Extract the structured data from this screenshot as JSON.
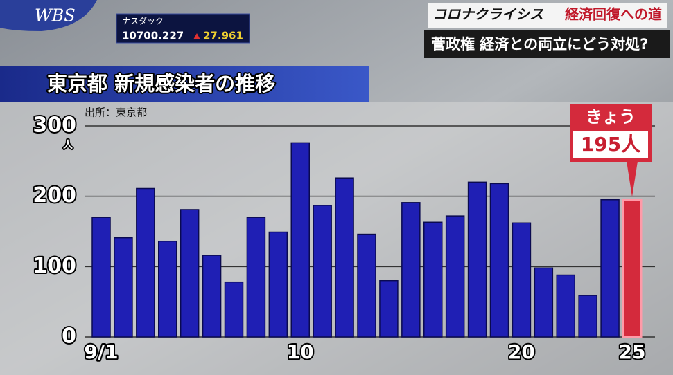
{
  "screen": {
    "logo": "WBS",
    "ticker": {
      "name": "ナスダック",
      "value": "10700.227",
      "change": "27.961"
    },
    "headline": {
      "series": "コロナクライシス",
      "topic": "経済回復への道",
      "title": "菅政権 経済との両立にどう対処?"
    }
  },
  "chart_data": {
    "type": "bar",
    "title": "東京都 新規感染者の推移",
    "source": "出所：東京都",
    "y_unit": "人",
    "callout_label": "きょう",
    "categories": [
      "9/1",
      null,
      null,
      null,
      null,
      null,
      null,
      null,
      null,
      "10",
      null,
      null,
      null,
      null,
      null,
      null,
      null,
      null,
      null,
      "20",
      null,
      null,
      null,
      null,
      "25"
    ],
    "values": [
      170,
      141,
      211,
      136,
      181,
      116,
      78,
      170,
      149,
      276,
      187,
      226,
      146,
      80,
      191,
      163,
      172,
      220,
      218,
      162,
      98,
      88,
      59,
      195,
      195
    ],
    "value_labels": [
      null,
      null,
      null,
      null,
      null,
      null,
      null,
      null,
      null,
      null,
      null,
      null,
      null,
      null,
      null,
      null,
      null,
      null,
      null,
      null,
      null,
      null,
      null,
      null,
      "195人"
    ],
    "colors": [
      "#1f1fb4",
      "#1f1fb4",
      "#1f1fb4",
      "#1f1fb4",
      "#1f1fb4",
      "#1f1fb4",
      "#1f1fb4",
      "#1f1fb4",
      "#1f1fb4",
      "#1f1fb4",
      "#1f1fb4",
      "#1f1fb4",
      "#1f1fb4",
      "#1f1fb4",
      "#1f1fb4",
      "#1f1fb4",
      "#1f1fb4",
      "#1f1fb4",
      "#1f1fb4",
      "#1f1fb4",
      "#1f1fb4",
      "#1f1fb4",
      "#1f1fb4",
      "#1f1fb4",
      "#d42a3c"
    ],
    "ylim": [
      0,
      300
    ],
    "yticks": [
      0,
      100,
      200,
      300
    ],
    "grid": true
  }
}
